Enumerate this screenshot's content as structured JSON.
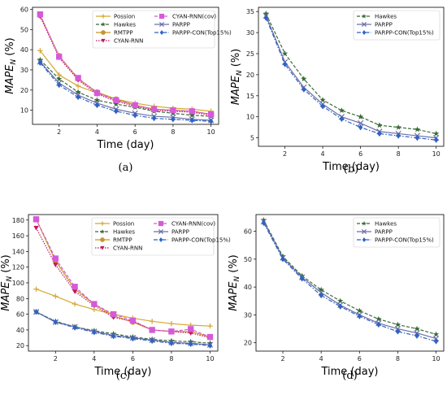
{
  "chart_data": [
    {
      "type": "line",
      "caption": "(a)",
      "xlabel": "Time (day)",
      "ylabel": "MAPE",
      "ylabel_sub": "N",
      "ylabel_unit": " (%)",
      "xlim": [
        0.6,
        10.4
      ],
      "ylim": [
        3,
        61
      ],
      "xticks": [
        2,
        4,
        6,
        8,
        10
      ],
      "yticks": [
        10,
        20,
        30,
        40,
        50,
        60
      ],
      "x": [
        1,
        2,
        3,
        4,
        5,
        6,
        7,
        8,
        9,
        10
      ],
      "legend_placement": "top-right",
      "legend_columns": 2,
      "series": [
        {
          "name": "Possion",
          "color": "#d4a832",
          "marker": "plus",
          "dash": "",
          "values": [
            39.5,
            27.5,
            22,
            18.5,
            15.5,
            13.5,
            12,
            11,
            10.5,
            9.5
          ]
        },
        {
          "name": "Hawkes",
          "color": "#3a6b3a",
          "marker": "star",
          "dash": "4,2",
          "values": [
            35,
            25.5,
            19,
            15,
            13,
            11.5,
            9.5,
            8.5,
            7.5,
            7
          ]
        },
        {
          "name": "RMTPP",
          "color": "#c8952a",
          "marker": "circle",
          "dash": "",
          "values": [
            57,
            37,
            25.5,
            19,
            15.5,
            12.5,
            10.5,
            10,
            9.5,
            8
          ]
        },
        {
          "name": "CYAN-RNN",
          "color": "#c0185a",
          "marker": "triangle-down",
          "dash": "1.5,1.5",
          "values": [
            56.5,
            36,
            25,
            18,
            14.5,
            12,
            10,
            9.5,
            9,
            7.5
          ]
        },
        {
          "name": "CYAN-RNN(cov)",
          "color": "#d65ad8",
          "marker": "square",
          "dash": "4,2",
          "values": [
            57.5,
            36.5,
            26,
            18.5,
            15,
            12.5,
            10.5,
            10,
            9.5,
            8
          ]
        },
        {
          "name": "PARPP",
          "color": "#6b6fa8",
          "marker": "x",
          "dash": "",
          "values": [
            34,
            23.5,
            17.5,
            13.5,
            10.5,
            8.5,
            7,
            6.5,
            5.5,
            5
          ]
        },
        {
          "name": "PARPP-CON(Top15%)",
          "color": "#2f62c4",
          "marker": "diamond",
          "dash": "5,2,1.5,2",
          "values": [
            33.5,
            22.5,
            16.5,
            12.5,
            9.5,
            7.5,
            6,
            5.5,
            5,
            4.5
          ]
        }
      ]
    },
    {
      "type": "line",
      "caption": "(b)",
      "xlabel": "Time (day)",
      "ylabel": "MAPE",
      "ylabel_sub": "N",
      "ylabel_unit": " (%)",
      "xlim": [
        0.6,
        10.4
      ],
      "ylim": [
        3,
        36
      ],
      "xticks": [
        2,
        4,
        6,
        8,
        10
      ],
      "yticks": [
        5,
        10,
        15,
        20,
        25,
        30,
        35
      ],
      "x": [
        1,
        2,
        3,
        4,
        5,
        6,
        7,
        8,
        9,
        10
      ],
      "legend_placement": "top-right",
      "legend_columns": 1,
      "series": [
        {
          "name": "Hawkes",
          "color": "#3a6b3a",
          "marker": "star",
          "dash": "4,2",
          "values": [
            34.5,
            25,
            19,
            14,
            11.5,
            10,
            8,
            7.5,
            7,
            6
          ]
        },
        {
          "name": "PARPP",
          "color": "#6b6fa8",
          "marker": "x",
          "dash": "",
          "values": [
            34,
            23,
            17,
            13,
            10,
            8.5,
            6.5,
            6,
            5.5,
            5
          ]
        },
        {
          "name": "PARPP-CON(Top15%)",
          "color": "#2f62c4",
          "marker": "diamond",
          "dash": "5,2,1.5,2",
          "values": [
            33.5,
            22.5,
            16.5,
            12.5,
            9.5,
            7.5,
            6,
            5.5,
            5,
            4.5
          ]
        }
      ]
    },
    {
      "type": "line",
      "caption": "(c)",
      "xlabel": "Time (day)",
      "ylabel": "MAPE",
      "ylabel_sub": "N",
      "ylabel_unit": " (%)",
      "xlim": [
        0.6,
        10.4
      ],
      "ylim": [
        13,
        187
      ],
      "xticks": [
        2,
        4,
        6,
        8,
        10
      ],
      "yticks": [
        20,
        40,
        60,
        80,
        100,
        120,
        140,
        160,
        180
      ],
      "x": [
        1,
        2,
        3,
        4,
        5,
        6,
        7,
        8,
        9,
        10
      ],
      "legend_placement": "top-right",
      "legend_columns": 2,
      "series": [
        {
          "name": "Possion",
          "color": "#d4a832",
          "marker": "plus",
          "dash": "",
          "values": [
            92,
            83,
            73,
            66,
            60,
            55,
            51,
            48,
            46,
            45
          ]
        },
        {
          "name": "Hawkes",
          "color": "#3a6b3a",
          "marker": "star",
          "dash": "4,2",
          "values": [
            63,
            51,
            44,
            39,
            35,
            31,
            28,
            26,
            25,
            23
          ]
        },
        {
          "name": "RMTPP",
          "color": "#c8952a",
          "marker": "circle",
          "dash": "",
          "values": [
            181,
            128,
            92,
            73,
            58,
            50,
            40,
            38,
            38,
            31
          ]
        },
        {
          "name": "CYAN-RNN",
          "color": "#c0185a",
          "marker": "triangle-down",
          "dash": "1.5,1.5",
          "values": [
            170,
            123,
            89,
            71,
            56,
            51,
            40,
            38,
            36,
            30
          ]
        },
        {
          "name": "CYAN-RNN(cov)",
          "color": "#d65ad8",
          "marker": "square",
          "dash": "4,2",
          "values": [
            181,
            131,
            95,
            73,
            60,
            52,
            40,
            38,
            41,
            31
          ]
        },
        {
          "name": "PARPP",
          "color": "#6b6fa8",
          "marker": "x",
          "dash": "",
          "values": [
            63,
            50,
            44,
            38,
            33,
            30,
            27,
            24,
            23,
            21
          ]
        },
        {
          "name": "PARPP-CON(Top15%)",
          "color": "#2f62c4",
          "marker": "diamond",
          "dash": "5,2,1.5,2",
          "values": [
            63,
            50,
            43,
            37,
            32,
            29,
            26,
            23,
            22,
            20
          ]
        }
      ]
    },
    {
      "type": "line",
      "caption": "(d)",
      "xlabel": "Time (day)",
      "ylabel": "MAPE",
      "ylabel_sub": "N",
      "ylabel_unit": " (%)",
      "xlim": [
        0.6,
        10.4
      ],
      "ylim": [
        17,
        66
      ],
      "xticks": [
        2,
        4,
        6,
        8,
        10
      ],
      "yticks": [
        20,
        30,
        40,
        50,
        60
      ],
      "x": [
        1,
        2,
        3,
        4,
        5,
        6,
        7,
        8,
        9,
        10
      ],
      "legend_placement": "top-right",
      "legend_columns": 1,
      "series": [
        {
          "name": "Hawkes",
          "color": "#3a6b3a",
          "marker": "star",
          "dash": "4,2",
          "values": [
            64,
            51,
            44,
            39,
            35,
            31.5,
            28.5,
            26.5,
            25,
            23
          ]
        },
        {
          "name": "PARPP",
          "color": "#6b6fa8",
          "marker": "x",
          "dash": "",
          "values": [
            63.5,
            50.5,
            43.5,
            38,
            33.5,
            30,
            27,
            25,
            23.5,
            21.5
          ]
        },
        {
          "name": "PARPP-CON(Top15%)",
          "color": "#2f62c4",
          "marker": "diamond",
          "dash": "5,2,1.5,2",
          "values": [
            63,
            50,
            43,
            37,
            33,
            29.5,
            26.5,
            24,
            22.5,
            20.5
          ]
        }
      ]
    }
  ]
}
